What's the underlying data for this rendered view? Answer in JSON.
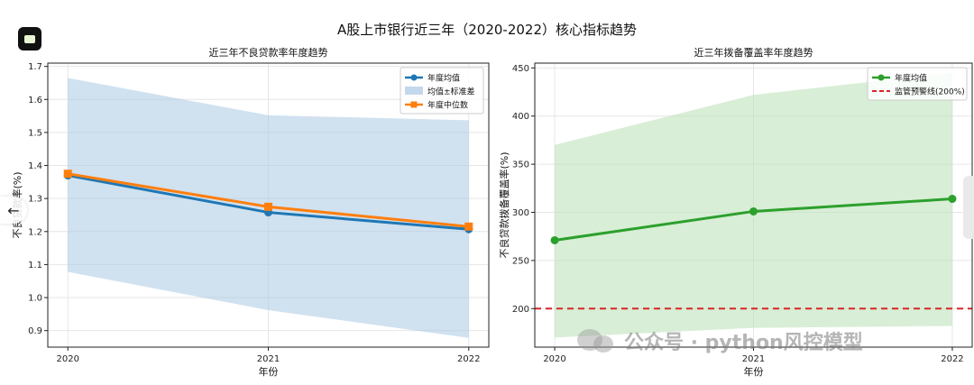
{
  "page_title": "A股上市银行近三年（2020-2022）核心指标趋势",
  "watermark": "公众号 · python风控模型",
  "colors": {
    "blue": "#1f77b4",
    "orange": "#ff7f0e",
    "green": "#2ca02c",
    "red": "#d62728",
    "blue_fill": "#a9c8e4",
    "green_fill": "#b8e0b5"
  },
  "chart_data": [
    {
      "type": "line",
      "title": "近三年不良贷款率年度趋势",
      "xlabel": "年份",
      "ylabel": "不良贷款率(%)",
      "x": [
        2020,
        2021,
        2022
      ],
      "xlim": [
        2019.9,
        2022.1
      ],
      "ylim": [
        0.85,
        1.71
      ],
      "yticks": [
        0.9,
        1.0,
        1.1,
        1.2,
        1.3,
        1.4,
        1.5,
        1.6,
        1.7
      ],
      "ytick_labels": [
        "0.9",
        "1.0",
        "1.1",
        "1.2",
        "1.3",
        "1.4",
        "1.5",
        "1.6",
        "1.7"
      ],
      "grid": true,
      "legend_position": "top-right",
      "series": [
        {
          "name": "年度均值",
          "kind": "line",
          "marker": "circle",
          "color": "#1f77b4",
          "values": [
            1.37,
            1.258,
            1.207
          ]
        },
        {
          "name": "年度中位数",
          "kind": "line",
          "marker": "square",
          "color": "#ff7f0e",
          "values": [
            1.375,
            1.275,
            1.215
          ]
        }
      ],
      "band": {
        "name": "均值±标准差",
        "color": "#a9c8e4",
        "lower": [
          1.078,
          0.962,
          0.878
        ],
        "upper": [
          1.665,
          1.552,
          1.537
        ]
      },
      "legend": [
        "年度均值",
        "均值±标准差",
        "年度中位数"
      ]
    },
    {
      "type": "line",
      "title": "近三年拨备覆盖率年度趋势",
      "xlabel": "年份",
      "ylabel": "不良贷款拨备覆盖率(%)",
      "x": [
        2020,
        2021,
        2022
      ],
      "xlim": [
        2019.9,
        2022.1
      ],
      "ylim": [
        160,
        455
      ],
      "yticks": [
        200,
        250,
        300,
        350,
        400,
        450
      ],
      "ytick_labels": [
        "200",
        "250",
        "300",
        "350",
        "400",
        "450"
      ],
      "grid": true,
      "legend_position": "top-right",
      "series": [
        {
          "name": "年度均值",
          "kind": "line",
          "marker": "circle",
          "color": "#2ca02c",
          "values": [
            271,
            301,
            314
          ]
        }
      ],
      "band": {
        "name": "",
        "color": "#b8e0b5",
        "lower": [
          170,
          180,
          182
        ],
        "upper": [
          370,
          422,
          445
        ]
      },
      "hline": {
        "name": "监管预警线(200%)",
        "value": 200,
        "color": "#d62728"
      },
      "legend": [
        "年度均值",
        "监管预警线(200%)"
      ]
    }
  ]
}
